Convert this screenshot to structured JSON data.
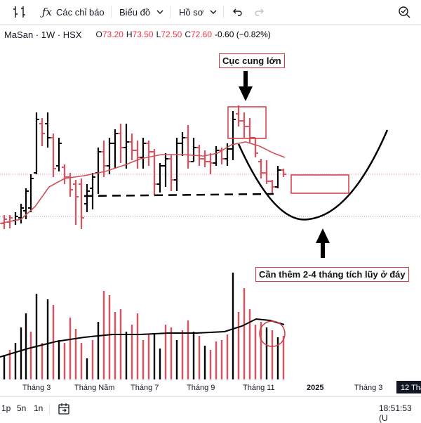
{
  "toolbar": {
    "indicators_label": "Các chỉ báo",
    "chart_type_label": "Biểu đồ",
    "profile_label": "Hồ sơ",
    "icons": [
      "candle-compare-icon",
      "fx-icon",
      "undo-icon",
      "redo-icon",
      "search-zoom-icon"
    ]
  },
  "legend": {
    "symbol": "MaSan · 1W · HSX",
    "open_key": "O",
    "open": "73.20",
    "high_key": "H",
    "high": "73.50",
    "low_key": "L",
    "low": "72.50",
    "close_key": "C",
    "close": "72.60",
    "change": "-0.60 (−0.82%)"
  },
  "annotations": {
    "top_label": "Cục cung lớn",
    "bottom_label": "Cần thêm 2-4 tháng tích lũy ở đáy"
  },
  "x_axis": {
    "labels": [
      "Tháng 3",
      "Tháng Năm",
      "Tháng 7",
      "Tháng 9",
      "Tháng 11",
      "2025",
      "Tháng 3"
    ],
    "crosshair_label": "12 Tha"
  },
  "bottom_bar": {
    "ranges": [
      "1p",
      "5n",
      "1n"
    ],
    "time": "18:51:53 (U"
  },
  "colors": {
    "up": "#000000",
    "down": "#e0505f",
    "annotation": "#d43a44",
    "ma": "#d0505a"
  }
}
